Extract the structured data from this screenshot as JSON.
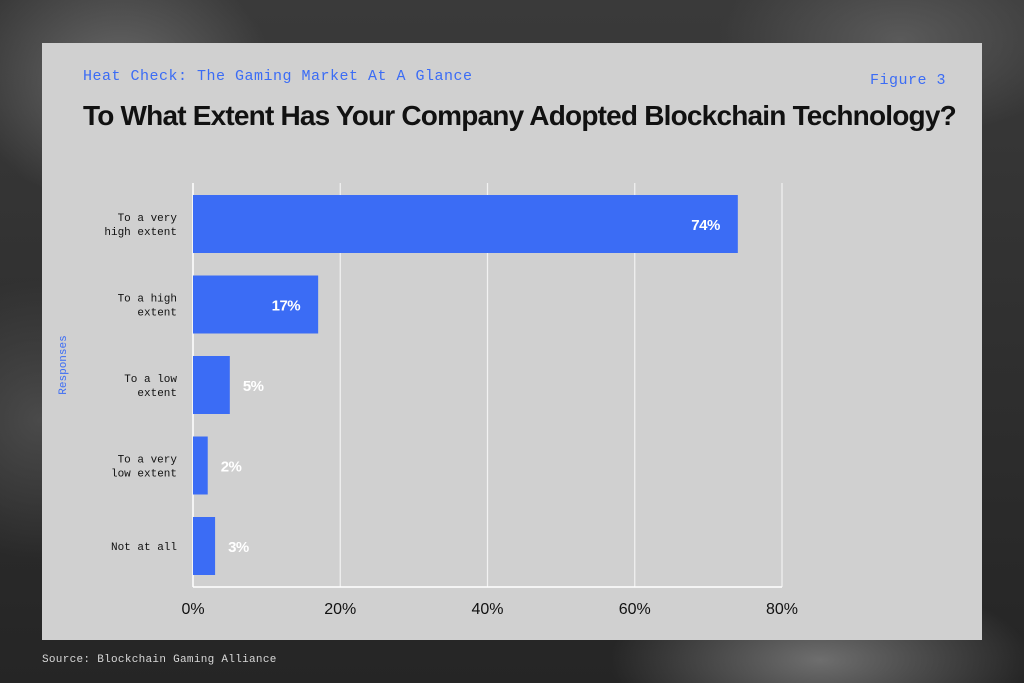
{
  "header": {
    "supertitle": "Heat Check: The Gaming Market At A Glance",
    "figure_label": "Figure 3"
  },
  "footer": {
    "source": "Source: Blockchain Gaming Alliance"
  },
  "colors": {
    "bar": "#3b6cf5",
    "accent_text": "#3b6cf5",
    "panel": "#d0d0d0",
    "grid": "#f2f2f2"
  },
  "chart_data": {
    "type": "bar",
    "orientation": "horizontal",
    "title": "To What Extent Has Your Company Adopted Blockchain Technology?",
    "ylabel": "Responses",
    "xlabel": "",
    "xlim": [
      0,
      80
    ],
    "xticks": [
      0,
      20,
      40,
      60,
      80
    ],
    "xtick_labels": [
      "0%",
      "20%",
      "40%",
      "60%",
      "80%"
    ],
    "grid": true,
    "categories": [
      [
        "To a very",
        "high extent"
      ],
      [
        "To a high",
        "extent"
      ],
      [
        "To a low",
        "extent"
      ],
      [
        "To a very",
        "low extent"
      ],
      [
        "Not at all"
      ]
    ],
    "values": [
      74,
      17,
      5,
      2,
      3
    ],
    "value_labels": [
      "74%",
      "17%",
      "5%",
      "2%",
      "3%"
    ]
  }
}
